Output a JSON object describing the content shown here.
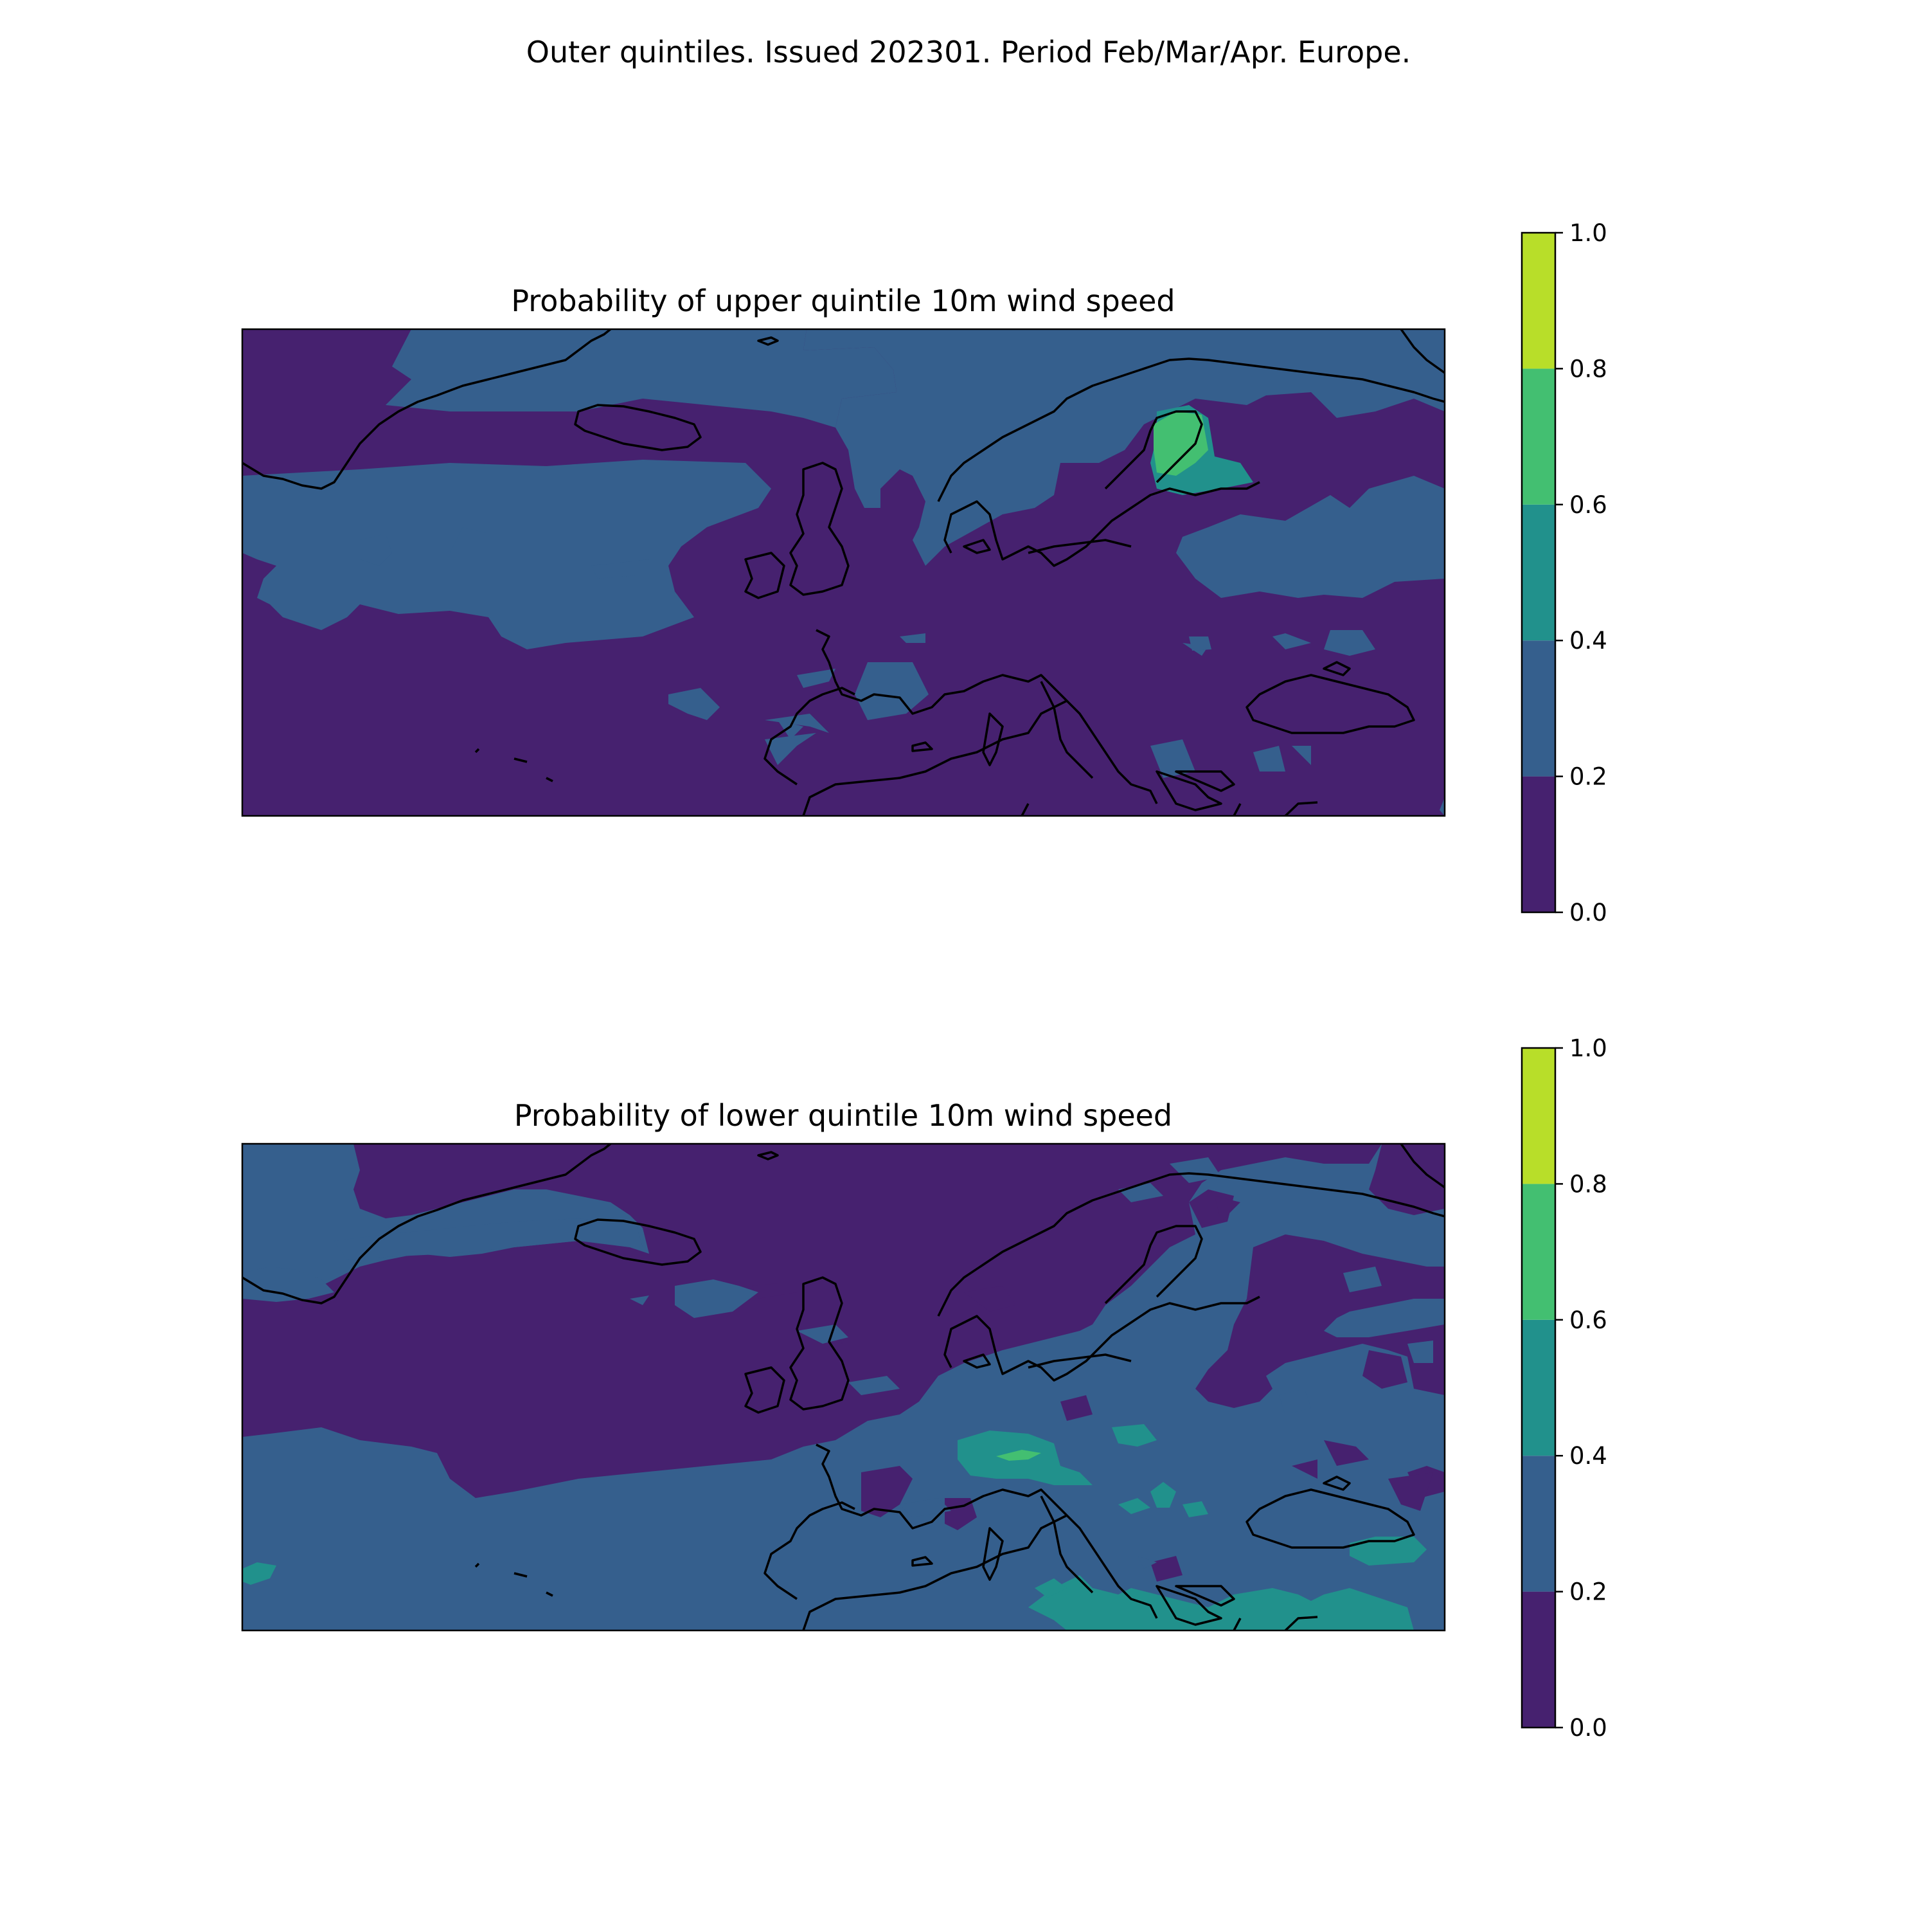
{
  "figure": {
    "title": "Outer quintiles. Issued 202301. Period Feb/Mar/Apr. Europe."
  },
  "colorbar": {
    "levels": [
      0.0,
      0.2,
      0.4,
      0.6,
      0.8,
      1.0
    ],
    "tick_labels": [
      "0.0",
      "0.2",
      "0.4",
      "0.6",
      "0.8",
      "1.0"
    ],
    "colors": [
      "#46216f",
      "#355f8d",
      "#21918c",
      "#43bf71",
      "#b8de29"
    ]
  },
  "panels": [
    {
      "title": "Probability of upper quintile 10m wind speed",
      "dominant_class": "0.0–0.2 over most of the domain; 0.2–0.4 over the North Atlantic and Scandinavia; 0.4–0.8 over Finland"
    },
    {
      "title": "Probability of lower quintile 10m wind speed",
      "dominant_class": "0.0–0.2 over the North Atlantic and northern Europe; 0.2–0.4 over the south and east; 0.4–0.6 over central Europe and the eastern Mediterranean"
    }
  ],
  "chart_data": {
    "type": "map",
    "value_range": [
      0.0,
      1.0
    ]
  }
}
